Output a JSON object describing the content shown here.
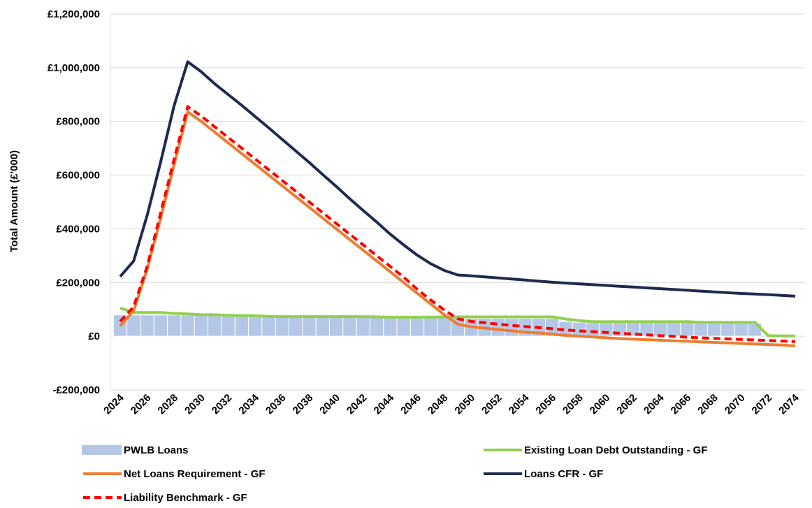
{
  "chart_data": {
    "type": "line",
    "title": "",
    "xlabel": "",
    "ylabel": "Total Amount (£'000)",
    "ylim": [
      -200000,
      1200000
    ],
    "yticks": [
      -200000,
      0,
      200000,
      400000,
      600000,
      800000,
      1000000,
      1200000
    ],
    "ytick_labels": [
      "-£200,000",
      "£0",
      "£200,000",
      "£400,000",
      "£600,000",
      "£800,000",
      "£1,000,000",
      "£1,200,000"
    ],
    "grid": "horizontal",
    "legend_position": "bottom",
    "x": [
      2024,
      2025,
      2026,
      2027,
      2028,
      2029,
      2030,
      2031,
      2032,
      2033,
      2034,
      2035,
      2036,
      2037,
      2038,
      2039,
      2040,
      2041,
      2042,
      2043,
      2044,
      2045,
      2046,
      2047,
      2048,
      2049,
      2050,
      2051,
      2052,
      2053,
      2054,
      2055,
      2056,
      2057,
      2058,
      2059,
      2060,
      2061,
      2062,
      2063,
      2064,
      2065,
      2066,
      2067,
      2068,
      2069,
      2070,
      2071,
      2072,
      2073,
      2074
    ],
    "xtick_labels": [
      "2024",
      "2026",
      "2028",
      "2030",
      "2032",
      "2034",
      "2036",
      "2038",
      "2040",
      "2042",
      "2044",
      "2046",
      "2048",
      "2050",
      "2052",
      "2054",
      "2056",
      "2058",
      "2060",
      "2062",
      "2064",
      "2066",
      "2068",
      "2070",
      "2072",
      "2074"
    ],
    "series": [
      {
        "name": "PWLB Loans",
        "kind": "bar",
        "color": "#b4c7e7",
        "values": [
          79000,
          79000,
          79000,
          79000,
          79000,
          79000,
          79000,
          79000,
          79000,
          79000,
          78000,
          76000,
          74000,
          73000,
          73000,
          73000,
          73000,
          73000,
          73000,
          73000,
          72000,
          72000,
          72000,
          72000,
          72000,
          72000,
          66000,
          66000,
          66000,
          66000,
          66000,
          66000,
          66000,
          55000,
          52000,
          50000,
          50000,
          50000,
          50000,
          50000,
          50000,
          50000,
          50000,
          48000,
          48000,
          48000,
          48000,
          48000,
          0,
          0,
          0
        ]
      },
      {
        "name": "Existing Loan Debt Outstanding - GF",
        "kind": "line",
        "color": "#92d050",
        "dash": "",
        "values": [
          105000,
          88000,
          88000,
          88000,
          85000,
          83000,
          80000,
          80000,
          78000,
          77000,
          76000,
          74000,
          73000,
          73000,
          73000,
          73000,
          73000,
          73000,
          73000,
          72000,
          71000,
          71000,
          71000,
          71000,
          72000,
          72000,
          72000,
          72000,
          72000,
          72000,
          72000,
          72000,
          72000,
          64000,
          58000,
          54000,
          54000,
          54000,
          54000,
          54000,
          54000,
          54000,
          54000,
          52000,
          52000,
          52000,
          52000,
          52000,
          2000,
          1000,
          1000
        ]
      },
      {
        "name": "Net Loans Requirement - GF",
        "kind": "line",
        "color": "#ed7d31",
        "dash": "",
        "values": [
          38000,
          95000,
          250000,
          440000,
          640000,
          835000,
          800000,
          760000,
          720000,
          680000,
          640000,
          600000,
          560000,
          520000,
          480000,
          440000,
          400000,
          360000,
          320000,
          280000,
          240000,
          200000,
          160000,
          120000,
          80000,
          45000,
          35000,
          30000,
          25000,
          20000,
          15000,
          12000,
          8000,
          3000,
          0,
          -3000,
          -6000,
          -9000,
          -11000,
          -13000,
          -15000,
          -17000,
          -19000,
          -21000,
          -23000,
          -25000,
          -27000,
          -29000,
          -31000,
          -33000,
          -36000
        ]
      },
      {
        "name": "Loans CFR - GF",
        "kind": "line",
        "color": "#1f2a4f",
        "dash": "",
        "values": [
          222000,
          280000,
          450000,
          650000,
          860000,
          1022000,
          985000,
          940000,
          900000,
          860000,
          818000,
          776000,
          733000,
          690000,
          647000,
          602000,
          558000,
          512000,
          468000,
          425000,
          380000,
          340000,
          302000,
          270000,
          245000,
          228000,
          225000,
          221000,
          217000,
          213000,
          209000,
          205000,
          201000,
          198000,
          195000,
          192000,
          189000,
          186000,
          183000,
          180000,
          177000,
          174000,
          171000,
          168000,
          165000,
          162000,
          159000,
          157000,
          155000,
          152000,
          149000
        ]
      },
      {
        "name": "Liability Benchmark - GF",
        "kind": "line",
        "color": "#ff0000",
        "dash": "10,6",
        "values": [
          55000,
          110000,
          260000,
          460000,
          660000,
          855000,
          820000,
          780000,
          740000,
          700000,
          660000,
          620000,
          580000,
          540000,
          500000,
          460000,
          420000,
          380000,
          340000,
          300000,
          260000,
          220000,
          175000,
          135000,
          98000,
          65000,
          55000,
          50000,
          45000,
          40000,
          36000,
          32000,
          28000,
          23000,
          20000,
          17000,
          14000,
          11000,
          8000,
          5000,
          2000,
          -1000,
          -4000,
          -6000,
          -8000,
          -10000,
          -12000,
          -14000,
          -16000,
          -18000,
          -20000
        ]
      }
    ],
    "legend": [
      {
        "label": "PWLB Loans",
        "color": "#b4c7e7",
        "style": "bar"
      },
      {
        "label": "Existing Loan Debt Outstanding - GF",
        "color": "#92d050",
        "style": "solid"
      },
      {
        "label": "Net Loans Requirement - GF",
        "color": "#ed7d31",
        "style": "solid"
      },
      {
        "label": "Loans CFR - GF",
        "color": "#1f2a4f",
        "style": "solid"
      },
      {
        "label": "Liability Benchmark - GF",
        "color": "#ff0000",
        "style": "dashed"
      }
    ]
  }
}
